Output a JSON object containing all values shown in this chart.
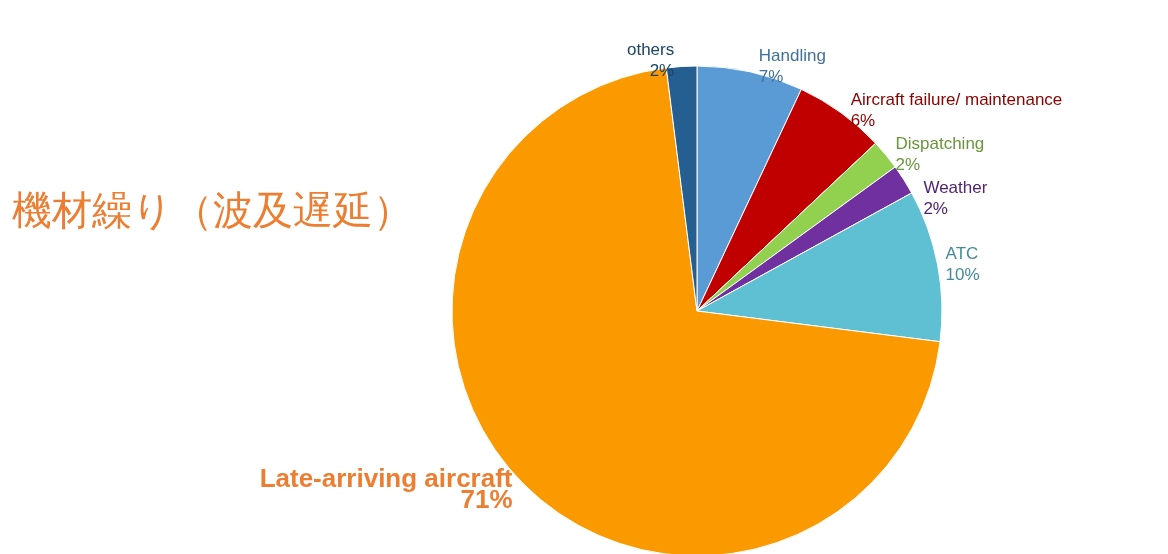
{
  "chart_data": {
    "type": "pie",
    "categories": [
      "Handling",
      "Aircraft failure/ maintenance",
      "Dispatching",
      "Weather",
      "ATC",
      "Late-arriving aircraft",
      "others"
    ],
    "values": [
      7,
      6,
      2,
      2,
      10,
      71,
      2
    ],
    "colors": [
      "#5b9bd5",
      "#c00000",
      "#92d050",
      "#7030a0",
      "#5fc0d4",
      "#fb9a00",
      "#255e91"
    ],
    "annotations": [
      "機材繰り（波及遅延）"
    ],
    "value_labels": [
      "7%",
      "6%",
      "2%",
      "2%",
      "10%",
      "71%",
      "2%"
    ],
    "legend": false
  }
}
